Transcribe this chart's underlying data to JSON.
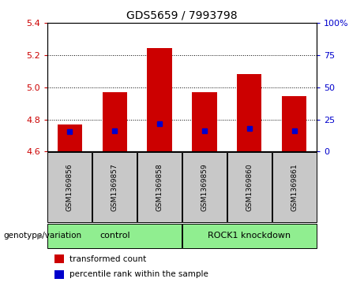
{
  "title": "GDS5659 / 7993798",
  "samples": [
    "GSM1369856",
    "GSM1369857",
    "GSM1369858",
    "GSM1369859",
    "GSM1369860",
    "GSM1369861"
  ],
  "bar_bottoms": [
    4.6,
    4.6,
    4.6,
    4.6,
    4.6,
    4.6
  ],
  "bar_tops": [
    4.77,
    4.97,
    5.245,
    4.97,
    5.08,
    4.945
  ],
  "blue_marker_vals": [
    4.725,
    4.73,
    4.775,
    4.73,
    4.745,
    4.73
  ],
  "ylim": [
    4.6,
    5.4
  ],
  "yticks_left": [
    4.6,
    4.8,
    5.0,
    5.2,
    5.4
  ],
  "yticks_right": [
    0,
    25,
    50,
    75,
    100
  ],
  "bar_color": "#cc0000",
  "blue_color": "#0000cc",
  "left_tick_color": "#cc0000",
  "right_tick_color": "#0000cc",
  "bar_width": 0.55,
  "group_info": [
    {
      "indices": [
        0,
        1,
        2
      ],
      "label": "control"
    },
    {
      "indices": [
        3,
        4,
        5
      ],
      "label": "ROCK1 knockdown"
    }
  ],
  "group_label_prefix": "genotype/variation",
  "legend_items": [
    {
      "label": "transformed count",
      "color": "#cc0000"
    },
    {
      "label": "percentile rank within the sample",
      "color": "#0000cc"
    }
  ],
  "background_color": "#ffffff",
  "sample_box_color": "#c8c8c8",
  "group_box_color": "#90ee90",
  "title_fontsize": 10,
  "tick_fontsize": 8,
  "sample_fontsize": 6.5,
  "group_fontsize": 8,
  "legend_fontsize": 7.5
}
